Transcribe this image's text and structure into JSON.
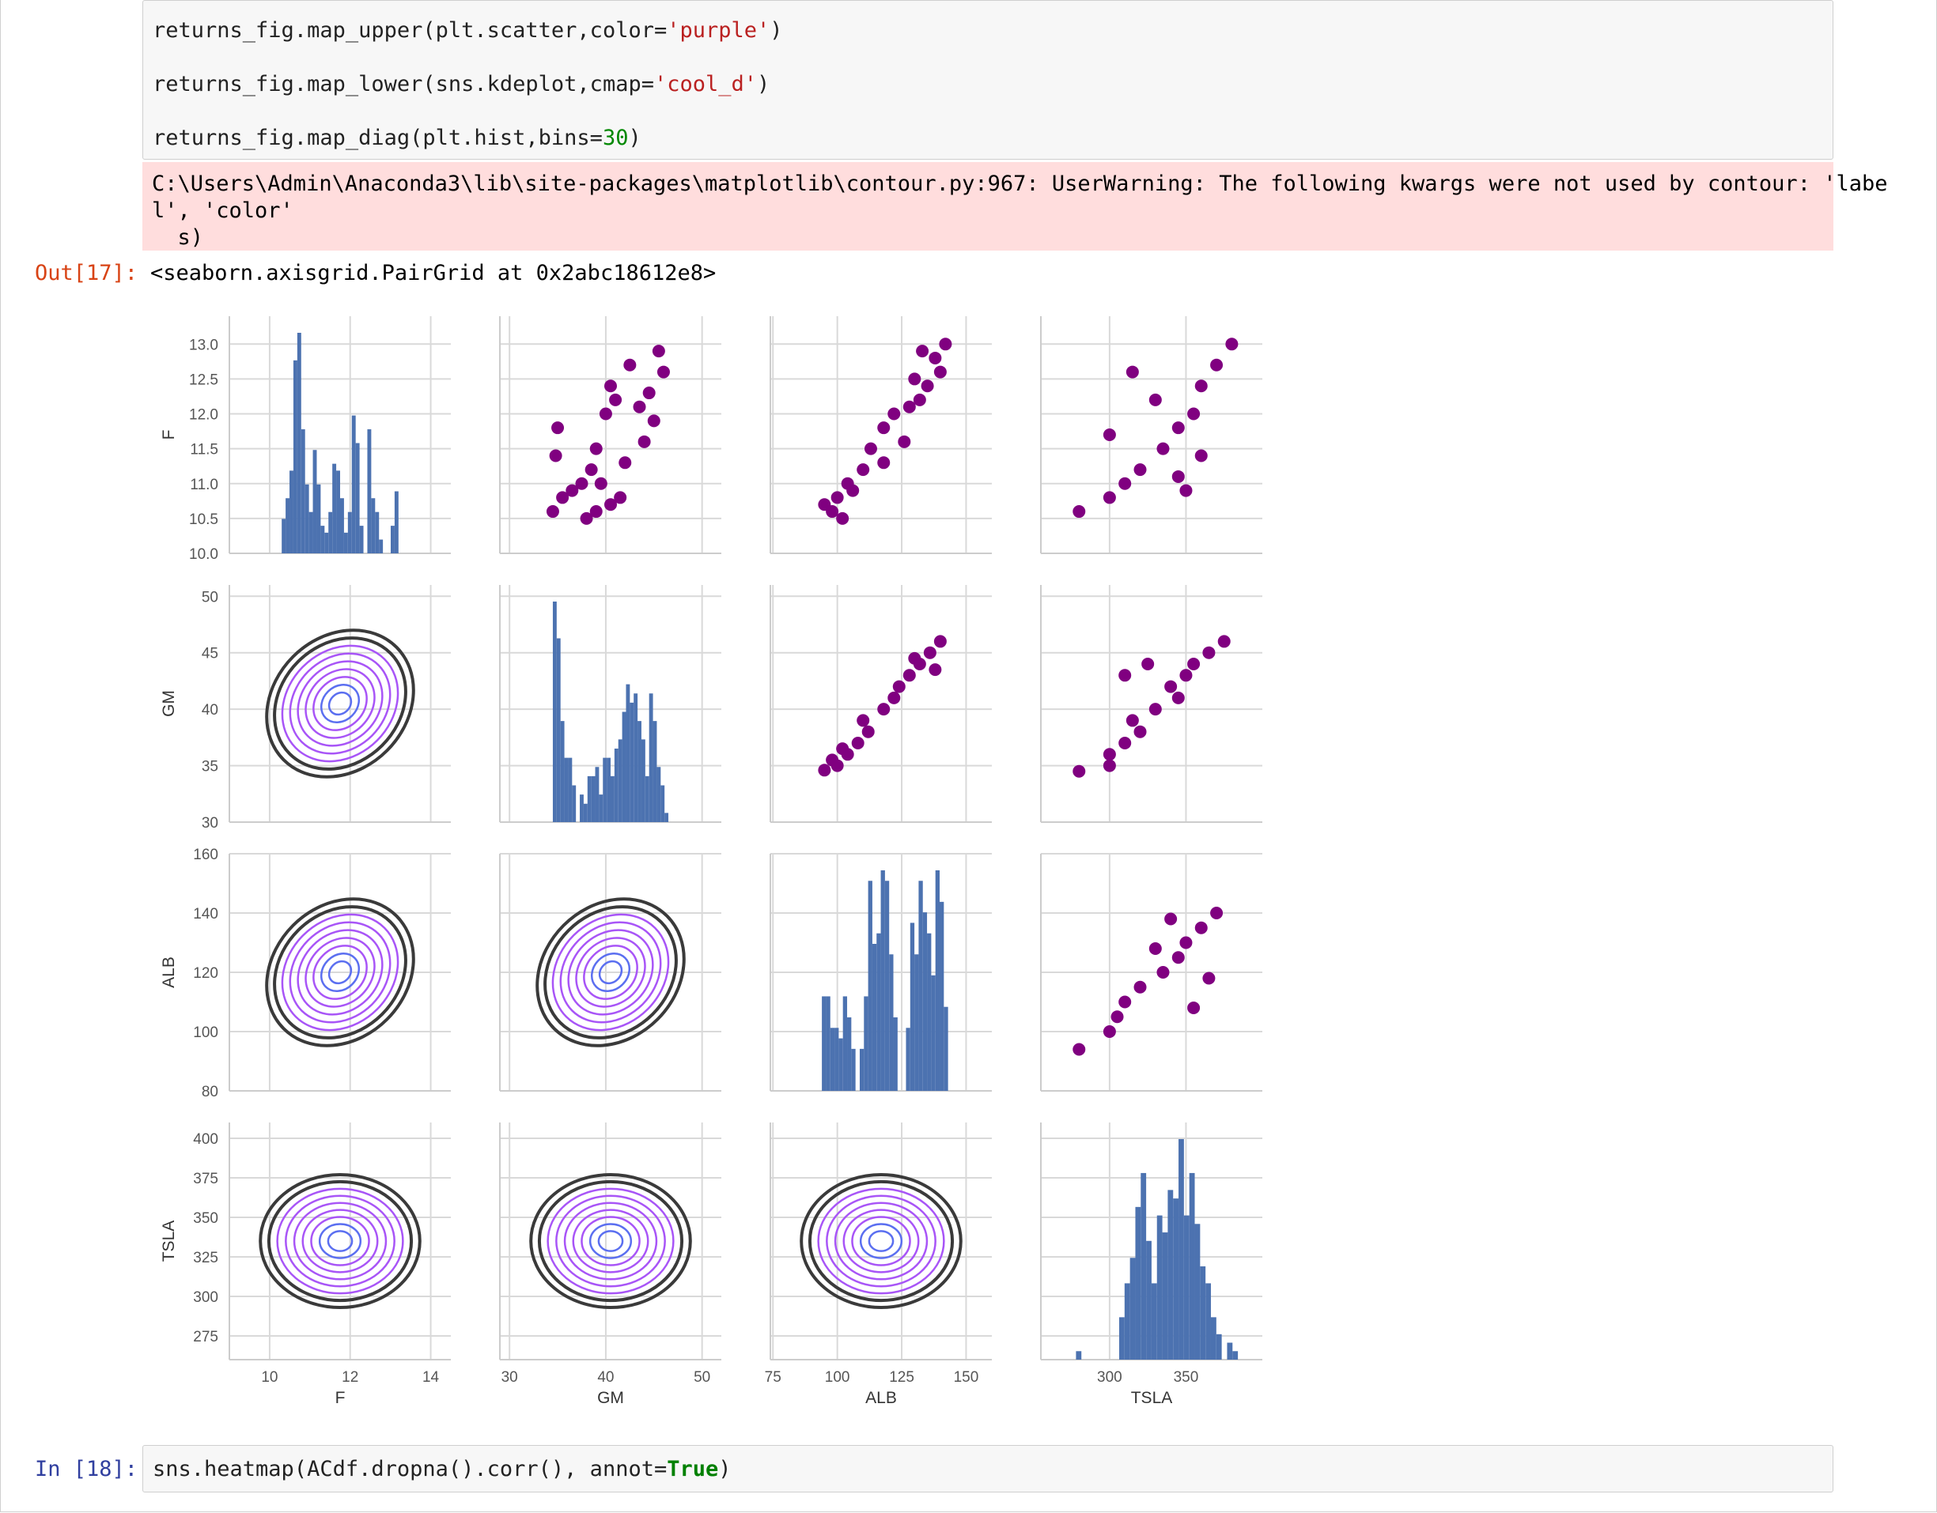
{
  "cell17": {
    "code_lines": [
      {
        "pre": "returns_fig.map_upper(plt.scatter,color=",
        "str": "'purple'",
        "post": ")"
      },
      {
        "pre": "returns_fig.map_lower(sns.kdeplot,cmap=",
        "str": "'cool_d'",
        "post": ")"
      },
      {
        "pre": "returns_fig.map_diag(plt.hist,bins=",
        "num": "30",
        "post": ")"
      }
    ],
    "warning_lines": [
      "C:\\Users\\Admin\\Anaconda3\\lib\\site-packages\\matplotlib\\contour.py:967: UserWarning: The following kwargs were not used by contour: 'labe",
      "l', 'color'",
      "  s)"
    ],
    "out_prompt": "Out[17]:",
    "out_text": "<seaborn.axisgrid.PairGrid at 0x2abc18612e8>"
  },
  "cell18": {
    "in_prompt": "In [18]:",
    "code_pre": "sns.heatmap(ACdf.dropna().corr(), annot=",
    "code_bool": "True",
    "code_post": ")"
  },
  "colors": {
    "hist": "#4c72b0",
    "scatter": "#800080",
    "grid": "#d9d9d9",
    "kde_outer": "#3a3a3a",
    "kde_inner": "#5b6ff0",
    "kde_mid": "#a855f7"
  },
  "chart_data": {
    "type": "scatter",
    "kind": "pairgrid",
    "variables": [
      "F",
      "GM",
      "ALB",
      "TSLA"
    ],
    "upper": "scatter",
    "lower": "kde",
    "diag": "hist",
    "scatter_color": "purple",
    "kde_cmap": "cool_d",
    "hist_bins": 30,
    "axes": {
      "F": {
        "label": "F",
        "range": [
          9.0,
          14.5
        ],
        "ticks": [
          10,
          12,
          14
        ],
        "ylim": [
          10.0,
          13.4
        ],
        "yticks": [
          "10.0",
          "10.5",
          "11.0",
          "11.5",
          "12.0",
          "12.5",
          "13.0"
        ]
      },
      "GM": {
        "label": "GM",
        "range": [
          29,
          52
        ],
        "ticks": [
          30,
          40,
          50
        ],
        "ylim": [
          30,
          51
        ],
        "yticks": [
          "30",
          "35",
          "40",
          "45",
          "50"
        ]
      },
      "ALB": {
        "label": "ALB",
        "range": [
          74,
          160
        ],
        "ticks": [
          75,
          100,
          125,
          150
        ],
        "ylim": [
          80,
          160
        ],
        "yticks": [
          "80",
          "100",
          "120",
          "140",
          "160"
        ]
      },
      "TSLA": {
        "label": "TSLA",
        "range": [
          255,
          400
        ],
        "ticks": [
          300,
          350
        ],
        "ylim": [
          260,
          410
        ],
        "yticks": [
          "275",
          "300",
          "325",
          "350",
          "375",
          "400"
        ]
      }
    },
    "diag_hist": {
      "F": {
        "edges": [
          10.3,
          13.2
        ],
        "counts": [
          5,
          8,
          12,
          28,
          32,
          18,
          10,
          6,
          15,
          10,
          4,
          3,
          6,
          13,
          12,
          8,
          3,
          6,
          20,
          16,
          4,
          0,
          18,
          8,
          6,
          2,
          0,
          0,
          4,
          9
        ]
      },
      "GM": {
        "edges": [
          34.5,
          46.5
        ],
        "counts": [
          48,
          40,
          22,
          14,
          14,
          8,
          0,
          6,
          4,
          10,
          10,
          12,
          6,
          14,
          14,
          10,
          16,
          18,
          24,
          30,
          26,
          28,
          22,
          18,
          10,
          28,
          22,
          12,
          8,
          2
        ]
      },
      "ALB": {
        "edges": [
          94,
          143
        ],
        "counts": [
          18,
          18,
          12,
          12,
          10,
          18,
          14,
          8,
          0,
          8,
          18,
          40,
          28,
          30,
          42,
          40,
          26,
          14,
          0,
          0,
          12,
          32,
          26,
          40,
          34,
          30,
          22,
          42,
          36,
          16
        ]
      },
      "TSLA": {
        "edges": [
          278,
          384
        ],
        "counts": [
          2,
          0,
          0,
          0,
          0,
          0,
          0,
          0,
          10,
          18,
          24,
          36,
          44,
          28,
          18,
          34,
          30,
          40,
          38,
          52,
          34,
          44,
          32,
          22,
          18,
          10,
          6,
          0,
          4,
          2
        ]
      }
    },
    "pairs": {
      "F_GM": [
        [
          10.6,
          34.5
        ],
        [
          10.8,
          35.5
        ],
        [
          10.9,
          36.5
        ],
        [
          11.0,
          37.5
        ],
        [
          11.2,
          38.5
        ],
        [
          11.0,
          39.5
        ],
        [
          10.7,
          40.5
        ],
        [
          10.8,
          41.5
        ],
        [
          11.3,
          42
        ],
        [
          11.6,
          44
        ],
        [
          11.9,
          45
        ],
        [
          12.1,
          43.5
        ],
        [
          12.3,
          44.5
        ],
        [
          12.6,
          46
        ],
        [
          12.9,
          45.5
        ],
        [
          12.2,
          41
        ],
        [
          12.0,
          40
        ],
        [
          11.5,
          39
        ],
        [
          11.8,
          35
        ],
        [
          11.4,
          34.8
        ],
        [
          10.5,
          38
        ],
        [
          10.6,
          39
        ],
        [
          12.7,
          42.5
        ],
        [
          12.4,
          40.5
        ]
      ],
      "F_ALB": [
        [
          10.7,
          95
        ],
        [
          10.8,
          100
        ],
        [
          11.0,
          104
        ],
        [
          11.2,
          110
        ],
        [
          10.9,
          106
        ],
        [
          11.5,
          113
        ],
        [
          11.8,
          118
        ],
        [
          12.0,
          122
        ],
        [
          12.2,
          132
        ],
        [
          12.4,
          135
        ],
        [
          12.6,
          140
        ],
        [
          12.8,
          138
        ],
        [
          13.0,
          142
        ],
        [
          12.5,
          130
        ],
        [
          11.6,
          126
        ],
        [
          11.3,
          118
        ],
        [
          10.6,
          98
        ],
        [
          10.5,
          102
        ],
        [
          12.1,
          128
        ],
        [
          12.9,
          133
        ]
      ],
      "F_TSLA": [
        [
          10.6,
          280
        ],
        [
          10.8,
          300
        ],
        [
          11.0,
          310
        ],
        [
          11.2,
          320
        ],
        [
          11.5,
          335
        ],
        [
          11.8,
          345
        ],
        [
          12.0,
          355
        ],
        [
          12.4,
          360
        ],
        [
          12.7,
          370
        ],
        [
          13.0,
          380
        ],
        [
          10.9,
          350
        ],
        [
          11.4,
          360
        ],
        [
          12.2,
          330
        ],
        [
          12.6,
          315
        ],
        [
          11.1,
          345
        ],
        [
          11.7,
          300
        ]
      ],
      "GM_ALB": [
        [
          34.6,
          95
        ],
        [
          35,
          100
        ],
        [
          36,
          104
        ],
        [
          37,
          108
        ],
        [
          38,
          112
        ],
        [
          40,
          118
        ],
        [
          42,
          124
        ],
        [
          43,
          128
        ],
        [
          44,
          132
        ],
        [
          45,
          136
        ],
        [
          46,
          140
        ],
        [
          41,
          122
        ],
        [
          39,
          110
        ],
        [
          36.5,
          102
        ],
        [
          35.5,
          98
        ],
        [
          44.5,
          130
        ],
        [
          43.5,
          138
        ]
      ],
      "GM_TSLA": [
        [
          34.5,
          280
        ],
        [
          36,
          300
        ],
        [
          37,
          310
        ],
        [
          38,
          320
        ],
        [
          40,
          330
        ],
        [
          42,
          340
        ],
        [
          43,
          350
        ],
        [
          44,
          355
        ],
        [
          45,
          365
        ],
        [
          46,
          375
        ],
        [
          41,
          345
        ],
        [
          39,
          315
        ],
        [
          35,
          300
        ],
        [
          44,
          325
        ],
        [
          43,
          310
        ]
      ],
      "ALB_TSLA": [
        [
          94,
          280
        ],
        [
          100,
          300
        ],
        [
          105,
          305
        ],
        [
          110,
          310
        ],
        [
          115,
          320
        ],
        [
          120,
          335
        ],
        [
          125,
          345
        ],
        [
          130,
          350
        ],
        [
          135,
          360
        ],
        [
          140,
          370
        ],
        [
          118,
          365
        ],
        [
          128,
          330
        ],
        [
          108,
          355
        ],
        [
          138,
          340
        ]
      ]
    }
  }
}
